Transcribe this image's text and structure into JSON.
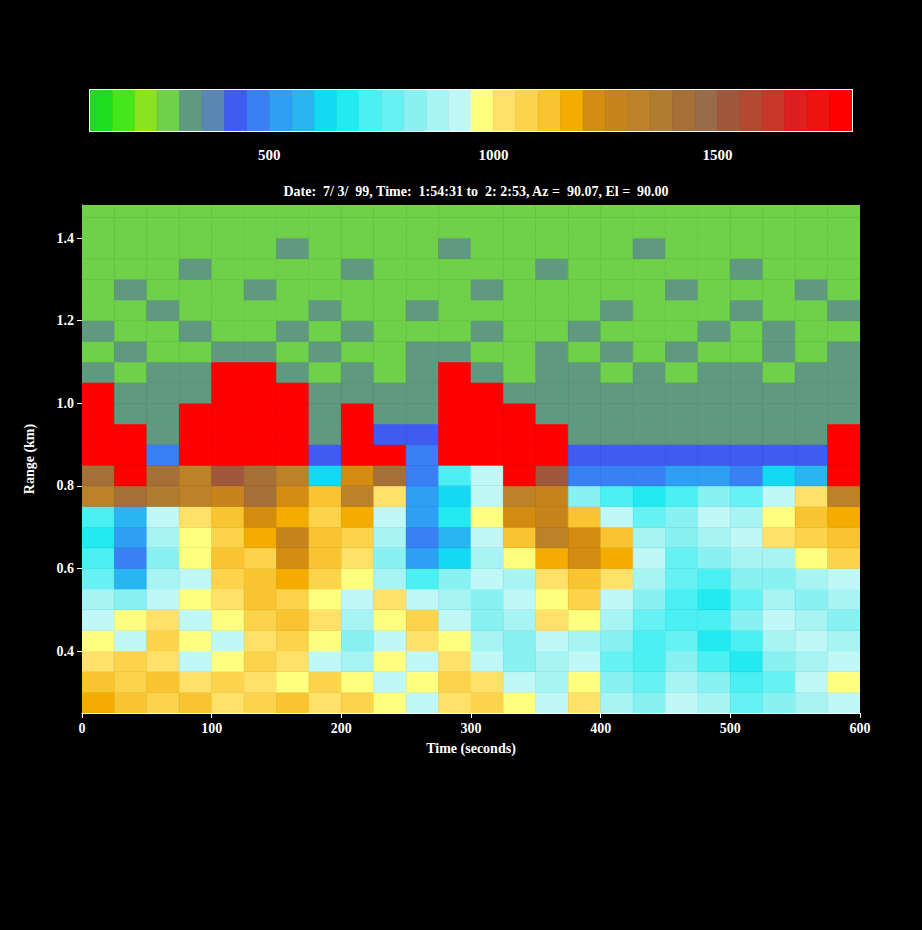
{
  "chart_data": {
    "type": "heatmap",
    "title": "Date:  7/ 3/  99, Time:  1:54:31 to  2: 2:53, Az =  90.07, El =  90.00",
    "x_label": "Time (seconds)",
    "y_label": "Range (km)",
    "xlim": [
      0,
      600
    ],
    "xticks": [
      0,
      100,
      200,
      300,
      400,
      500,
      600
    ],
    "ylim": [
      0.25,
      1.48
    ],
    "yticks": [
      0.4,
      0.6,
      0.8,
      {
        "value": 1.0,
        "label": "1.0"
      },
      1.2,
      1.4
    ],
    "x_edges": [
      0,
      25,
      50,
      75,
      100,
      125,
      150,
      175,
      200,
      225,
      250,
      275,
      300,
      325,
      350,
      375,
      400,
      425,
      450,
      475,
      500,
      525,
      550,
      575,
      600
    ],
    "y_edges": [
      0.25,
      0.3,
      0.35,
      0.4,
      0.45,
      0.5,
      0.55,
      0.6,
      0.65,
      0.7,
      0.75,
      0.8,
      0.85,
      0.9,
      0.95,
      1.0,
      1.05,
      1.1,
      1.15,
      1.2,
      1.25,
      1.3,
      1.35,
      1.4,
      1.45,
      1.48
    ],
    "cells": [
      [
        1150,
        1100,
        1050,
        1100,
        1000,
        1050,
        1100,
        1000,
        1050,
        950,
        900,
        1000,
        1050,
        950,
        900,
        1000,
        850,
        800,
        900,
        850,
        750,
        800,
        850,
        900
      ],
      [
        1100,
        1050,
        1100,
        1000,
        1050,
        1000,
        950,
        1050,
        950,
        900,
        950,
        1050,
        1000,
        900,
        850,
        950,
        800,
        750,
        850,
        800,
        700,
        750,
        900,
        950
      ],
      [
        1000,
        1050,
        1000,
        900,
        950,
        1050,
        1000,
        900,
        850,
        950,
        900,
        1000,
        900,
        800,
        850,
        900,
        750,
        700,
        800,
        700,
        650,
        800,
        850,
        900
      ],
      [
        950,
        900,
        1050,
        950,
        900,
        1000,
        1050,
        950,
        800,
        900,
        1000,
        950,
        850,
        800,
        900,
        850,
        800,
        700,
        750,
        650,
        700,
        850,
        900,
        850
      ],
      [
        900,
        950,
        1000,
        900,
        950,
        1050,
        1100,
        1000,
        850,
        950,
        1050,
        900,
        800,
        850,
        1000,
        950,
        850,
        750,
        700,
        700,
        800,
        900,
        850,
        800
      ],
      [
        850,
        800,
        900,
        950,
        1000,
        1100,
        1050,
        950,
        900,
        1000,
        900,
        850,
        800,
        900,
        950,
        1050,
        900,
        800,
        700,
        650,
        750,
        850,
        800,
        850
      ],
      [
        750,
        550,
        850,
        900,
        1050,
        1100,
        1150,
        1050,
        950,
        850,
        700,
        800,
        900,
        850,
        1000,
        1100,
        1000,
        850,
        750,
        700,
        800,
        800,
        850,
        900
      ],
      [
        700,
        480,
        800,
        950,
        1100,
        1050,
        1200,
        1100,
        1000,
        800,
        500,
        600,
        850,
        950,
        1150,
        1200,
        1150,
        900,
        750,
        800,
        850,
        850,
        950,
        1050
      ],
      [
        650,
        500,
        850,
        950,
        1050,
        1150,
        1250,
        1100,
        1050,
        850,
        450,
        550,
        900,
        1100,
        1300,
        1200,
        1100,
        850,
        800,
        850,
        900,
        1000,
        1050,
        1100
      ],
      [
        700,
        550,
        900,
        1000,
        1100,
        1200,
        1150,
        1050,
        1150,
        900,
        500,
        650,
        950,
        1200,
        1250,
        1100,
        900,
        750,
        800,
        900,
        850,
        950,
        1100,
        1150
      ],
      [
        1300,
        1400,
        1350,
        1300,
        1250,
        1400,
        1200,
        1100,
        1300,
        1000,
        500,
        600,
        900,
        1300,
        1250,
        800,
        700,
        650,
        700,
        800,
        750,
        900,
        1000,
        1300
      ],
      [
        1400,
        1750,
        1400,
        1300,
        1500,
        1400,
        1300,
        600,
        1200,
        1400,
        480,
        700,
        900,
        1750,
        1500,
        480,
        450,
        480,
        500,
        520,
        480,
        600,
        550,
        1750
      ],
      [
        1750,
        1750,
        450,
        1750,
        1750,
        1750,
        1750,
        420,
        1750,
        1750,
        450,
        1750,
        1750,
        1750,
        1750,
        420,
        420,
        440,
        420,
        430,
        420,
        440,
        430,
        1750
      ],
      [
        1750,
        1750,
        340,
        1750,
        1750,
        1750,
        1750,
        340,
        1750,
        420,
        400,
        1750,
        1750,
        1750,
        1750,
        340,
        340,
        340,
        340,
        340,
        340,
        340,
        340,
        1750
      ],
      [
        1750,
        340,
        340,
        1750,
        1750,
        1750,
        1750,
        340,
        1750,
        340,
        340,
        1750,
        1750,
        1750,
        340,
        340,
        340,
        340,
        340,
        340,
        340,
        340,
        340,
        340
      ],
      [
        1750,
        340,
        340,
        340,
        1750,
        1750,
        1750,
        340,
        340,
        340,
        340,
        1750,
        1750,
        340,
        340,
        340,
        340,
        340,
        340,
        340,
        340,
        340,
        340,
        340
      ],
      [
        325,
        275,
        325,
        325,
        1750,
        1750,
        325,
        275,
        325,
        275,
        325,
        1750,
        325,
        275,
        325,
        325,
        275,
        325,
        275,
        325,
        325,
        275,
        325,
        325
      ],
      [
        275,
        325,
        275,
        275,
        325,
        325,
        275,
        325,
        275,
        275,
        325,
        325,
        275,
        275,
        325,
        275,
        325,
        275,
        325,
        275,
        275,
        325,
        275,
        325
      ],
      [
        325,
        275,
        275,
        325,
        275,
        275,
        325,
        275,
        325,
        275,
        275,
        275,
        325,
        275,
        275,
        325,
        275,
        275,
        275,
        325,
        275,
        325,
        275,
        275
      ],
      [
        275,
        275,
        325,
        275,
        275,
        275,
        275,
        325,
        275,
        275,
        325,
        275,
        275,
        275,
        275,
        275,
        325,
        275,
        275,
        275,
        325,
        275,
        275,
        325
      ],
      [
        275,
        325,
        275,
        275,
        275,
        325,
        275,
        275,
        275,
        275,
        275,
        275,
        325,
        275,
        275,
        275,
        275,
        275,
        325,
        275,
        275,
        275,
        325,
        275
      ],
      [
        275,
        275,
        275,
        325,
        275,
        275,
        275,
        275,
        325,
        275,
        275,
        275,
        275,
        275,
        325,
        275,
        275,
        275,
        275,
        275,
        325,
        275,
        275,
        275
      ],
      [
        275,
        275,
        275,
        275,
        275,
        275,
        325,
        275,
        275,
        275,
        275,
        325,
        275,
        275,
        275,
        275,
        275,
        325,
        275,
        275,
        275,
        275,
        275,
        275
      ],
      [
        275,
        275,
        275,
        275,
        275,
        275,
        275,
        275,
        275,
        275,
        275,
        275,
        275,
        275,
        275,
        275,
        275,
        275,
        275,
        275,
        275,
        275,
        275,
        275
      ],
      [
        275,
        275,
        275,
        275,
        275,
        275,
        275,
        275,
        275,
        275,
        275,
        275,
        275,
        275,
        275,
        275,
        275,
        275,
        275,
        275,
        275,
        275,
        275,
        275
      ]
    ],
    "colorbar": {
      "range": [
        100,
        1800
      ],
      "ticks": [
        500,
        1000,
        1500
      ]
    },
    "colors": [
      "#1edc1e",
      "#44e81a",
      "#8be21e",
      "#6fd04a",
      "#5f9a80",
      "#5a86b4",
      "#3f5cf0",
      "#3a80f5",
      "#2e9ff5",
      "#29b4f2",
      "#13d9f2",
      "#22eaf0",
      "#4af0f2",
      "#66f2f2",
      "#88f2f2",
      "#a6f4f4",
      "#c0f8f8",
      "#ffff80",
      "#ffe068",
      "#fcd44c",
      "#f8c430",
      "#f4ac00",
      "#d48c10",
      "#c8841c",
      "#bc8228",
      "#b07c30",
      "#a47038",
      "#986c48",
      "#a0583c",
      "#b44830",
      "#c83828",
      "#dc2020",
      "#ec1410",
      "#ff0000"
    ]
  }
}
